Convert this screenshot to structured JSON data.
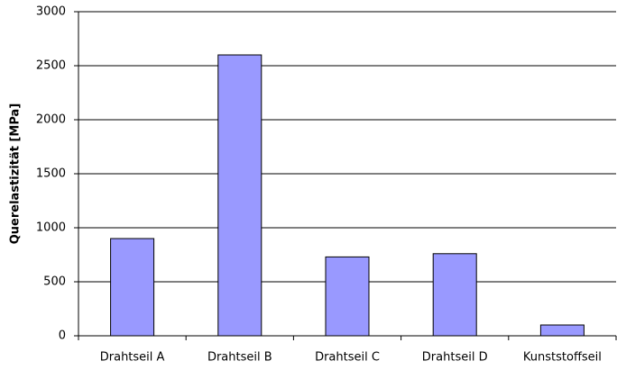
{
  "chart_data": {
    "type": "bar",
    "y_label": "Querelastizität [MPa]",
    "categories": [
      "Drahtseil A",
      "Drahtseil B",
      "Drahtseil C",
      "Drahtseil D",
      "Kunststoffseil"
    ],
    "values": [
      900,
      2600,
      730,
      760,
      100
    ],
    "color": "#9999ff",
    "ylim": [
      0,
      3000
    ],
    "yticks": [
      0,
      500,
      1000,
      1500,
      2000,
      2500,
      3000
    ],
    "grid": true
  }
}
